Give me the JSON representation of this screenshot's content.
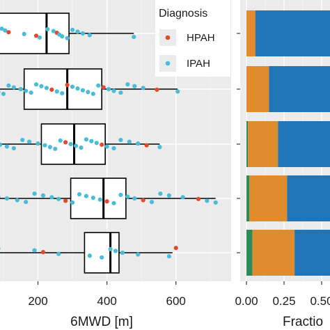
{
  "chart_data": [
    {
      "type": "boxplot",
      "xlabel": "6MWD [m]",
      "ylabel": "",
      "xlim": [
        90,
        760
      ],
      "xticks": [
        200,
        400,
        600
      ],
      "grid": true,
      "legend": {
        "title": "Diagnosis",
        "position": "top-right",
        "entries": [
          {
            "name": "HPAH",
            "color": "#e2492f"
          },
          {
            "name": "IPAH",
            "color": "#49bcd8"
          }
        ]
      },
      "box_style": {
        "fill": "#ffffff",
        "stroke": "#000000"
      },
      "rows": [
        {
          "whisker_low": 75,
          "q1": 85,
          "median": 225,
          "q3": 290,
          "whisker_high": 478,
          "points": [
            {
              "x": 95,
              "g": "IPAH"
            },
            {
              "x": 105,
              "g": "IPAH"
            },
            {
              "x": 115,
              "g": "HPAH"
            },
            {
              "x": 160,
              "g": "IPAH"
            },
            {
              "x": 195,
              "g": "HPAH"
            },
            {
              "x": 205,
              "g": "IPAH"
            },
            {
              "x": 228,
              "g": "IPAH"
            },
            {
              "x": 245,
              "g": "IPAH"
            },
            {
              "x": 255,
              "g": "HPAH"
            },
            {
              "x": 262,
              "g": "IPAH"
            },
            {
              "x": 270,
              "g": "IPAH"
            },
            {
              "x": 285,
              "g": "IPAH"
            },
            {
              "x": 300,
              "g": "IPAH"
            },
            {
              "x": 315,
              "g": "IPAH"
            },
            {
              "x": 330,
              "g": "IPAH"
            },
            {
              "x": 350,
              "g": "IPAH"
            },
            {
              "x": 478,
              "g": "IPAH"
            }
          ]
        },
        {
          "whisker_low": 75,
          "q1": 160,
          "median": 285,
          "q3": 385,
          "whisker_high": 605,
          "points": [
            {
              "x": 85,
              "g": "IPAH"
            },
            {
              "x": 100,
              "g": "IPAH"
            },
            {
              "x": 115,
              "g": "IPAH"
            },
            {
              "x": 130,
              "g": "IPAH"
            },
            {
              "x": 150,
              "g": "IPAH"
            },
            {
              "x": 165,
              "g": "IPAH"
            },
            {
              "x": 180,
              "g": "IPAH"
            },
            {
              "x": 195,
              "g": "IPAH"
            },
            {
              "x": 210,
              "g": "IPAH"
            },
            {
              "x": 225,
              "g": "IPAH"
            },
            {
              "x": 240,
              "g": "HPAH"
            },
            {
              "x": 255,
              "g": "IPAH"
            },
            {
              "x": 270,
              "g": "IPAH"
            },
            {
              "x": 285,
              "g": "HPAH"
            },
            {
              "x": 300,
              "g": "IPAH"
            },
            {
              "x": 315,
              "g": "IPAH"
            },
            {
              "x": 330,
              "g": "IPAH"
            },
            {
              "x": 345,
              "g": "IPAH"
            },
            {
              "x": 360,
              "g": "IPAH"
            },
            {
              "x": 375,
              "g": "IPAH"
            },
            {
              "x": 390,
              "g": "HPAH"
            },
            {
              "x": 405,
              "g": "IPAH"
            },
            {
              "x": 420,
              "g": "IPAH"
            },
            {
              "x": 440,
              "g": "IPAH"
            },
            {
              "x": 460,
              "g": "IPAH"
            },
            {
              "x": 480,
              "g": "IPAH"
            },
            {
              "x": 505,
              "g": "IPAH"
            },
            {
              "x": 545,
              "g": "HPAH"
            },
            {
              "x": 605,
              "g": "IPAH"
            }
          ]
        },
        {
          "whisker_low": 75,
          "q1": 210,
          "median": 305,
          "q3": 395,
          "whisker_high": 553,
          "points": [
            {
              "x": 90,
              "g": "IPAH"
            },
            {
              "x": 110,
              "g": "IPAH"
            },
            {
              "x": 130,
              "g": "IPAH"
            },
            {
              "x": 155,
              "g": "IPAH"
            },
            {
              "x": 175,
              "g": "IPAH"
            },
            {
              "x": 200,
              "g": "IPAH"
            },
            {
              "x": 220,
              "g": "IPAH"
            },
            {
              "x": 235,
              "g": "IPAH"
            },
            {
              "x": 250,
              "g": "IPAH"
            },
            {
              "x": 265,
              "g": "IPAH"
            },
            {
              "x": 280,
              "g": "HPAH"
            },
            {
              "x": 295,
              "g": "IPAH"
            },
            {
              "x": 310,
              "g": "IPAH"
            },
            {
              "x": 325,
              "g": "IPAH"
            },
            {
              "x": 340,
              "g": "IPAH"
            },
            {
              "x": 355,
              "g": "IPAH"
            },
            {
              "x": 370,
              "g": "IPAH"
            },
            {
              "x": 385,
              "g": "HPAH"
            },
            {
              "x": 400,
              "g": "IPAH"
            },
            {
              "x": 420,
              "g": "IPAH"
            },
            {
              "x": 440,
              "g": "IPAH"
            },
            {
              "x": 465,
              "g": "IPAH"
            },
            {
              "x": 490,
              "g": "IPAH"
            },
            {
              "x": 515,
              "g": "HPAH"
            },
            {
              "x": 553,
              "g": "IPAH"
            }
          ]
        },
        {
          "whisker_low": 75,
          "q1": 295,
          "median": 390,
          "q3": 455,
          "whisker_high": 715,
          "points": [
            {
              "x": 85,
              "g": "IPAH"
            },
            {
              "x": 110,
              "g": "IPAH"
            },
            {
              "x": 140,
              "g": "IPAH"
            },
            {
              "x": 165,
              "g": "IPAH"
            },
            {
              "x": 190,
              "g": "IPAH"
            },
            {
              "x": 215,
              "g": "IPAH"
            },
            {
              "x": 240,
              "g": "IPAH"
            },
            {
              "x": 260,
              "g": "IPAH"
            },
            {
              "x": 280,
              "g": "HPAH"
            },
            {
              "x": 300,
              "g": "IPAH"
            },
            {
              "x": 320,
              "g": "IPAH"
            },
            {
              "x": 340,
              "g": "IPAH"
            },
            {
              "x": 360,
              "g": "IPAH"
            },
            {
              "x": 380,
              "g": "IPAH"
            },
            {
              "x": 400,
              "g": "HPAH"
            },
            {
              "x": 420,
              "g": "IPAH"
            },
            {
              "x": 440,
              "g": "IPAH"
            },
            {
              "x": 460,
              "g": "IPAH"
            },
            {
              "x": 480,
              "g": "IPAH"
            },
            {
              "x": 505,
              "g": "HPAH"
            },
            {
              "x": 530,
              "g": "IPAH"
            },
            {
              "x": 555,
              "g": "IPAH"
            },
            {
              "x": 580,
              "g": "IPAH"
            },
            {
              "x": 620,
              "g": "IPAH"
            },
            {
              "x": 665,
              "g": "HPAH"
            },
            {
              "x": 690,
              "g": "IPAH"
            },
            {
              "x": 715,
              "g": "IPAH"
            }
          ]
        },
        {
          "whisker_low": 75,
          "q1": 335,
          "median": 410,
          "q3": 435,
          "whisker_high": 590,
          "points": [
            {
              "x": 85,
              "g": "IPAH"
            },
            {
              "x": 190,
              "g": "IPAH"
            },
            {
              "x": 215,
              "g": "HPAH"
            },
            {
              "x": 260,
              "g": "IPAH"
            },
            {
              "x": 350,
              "g": "IPAH"
            },
            {
              "x": 385,
              "g": "IPAH"
            },
            {
              "x": 410,
              "g": "IPAH"
            },
            {
              "x": 425,
              "g": "IPAH"
            },
            {
              "x": 445,
              "g": "IPAH"
            },
            {
              "x": 490,
              "g": "IPAH"
            },
            {
              "x": 580,
              "g": "IPAH"
            },
            {
              "x": 600,
              "g": "HPAH"
            }
          ]
        }
      ]
    },
    {
      "type": "bar",
      "orientation": "horizontal",
      "stacked": true,
      "xlabel": "Fractio",
      "xlim": [
        0,
        1
      ],
      "xticks": [
        "0.00",
        "0.25",
        "0.50"
      ],
      "colors": [
        "#2e8b57",
        "#e08c2c",
        "#1f75b8"
      ],
      "rows": [
        [
          0.0,
          0.06,
          0.94
        ],
        [
          0.0,
          0.15,
          0.85
        ],
        [
          0.01,
          0.2,
          0.79
        ],
        [
          0.02,
          0.25,
          0.73
        ],
        [
          0.04,
          0.28,
          0.68
        ]
      ]
    }
  ]
}
